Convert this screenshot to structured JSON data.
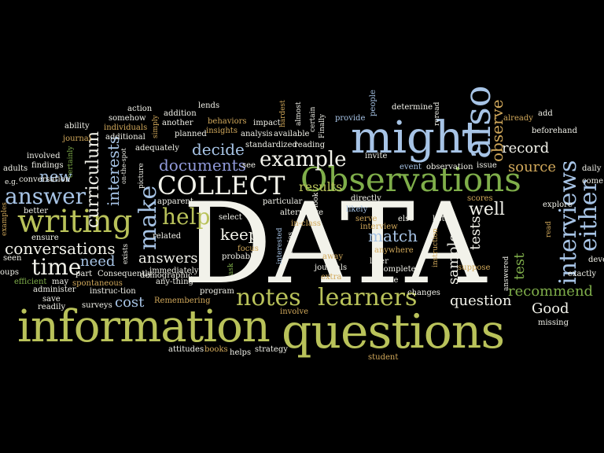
{
  "colors": {
    "background": "#000000",
    "white": "#f2f2ea",
    "olive": "#b9c25a",
    "lightblue": "#a7c4e6",
    "periwinkle": "#8f98d8",
    "green": "#7fae4a",
    "tan": "#d2a95b",
    "gray": "#b8b8b8",
    "cream": "#e8e8cf"
  },
  "words": {
    "data": "DATA",
    "information": "information",
    "questions": "questions",
    "might": "might",
    "observations": "Observations",
    "collect": "COLLECT",
    "writing": "writing",
    "also": "also",
    "interviews": "interviews",
    "either": "either",
    "example": "example",
    "notes": "notes",
    "learners": "learners",
    "time": "time",
    "answer": "answer",
    "new": "new",
    "help": "help",
    "make": "make",
    "documents": "documents",
    "decide": "decide",
    "curriculum": "curriculum",
    "interests": "interests",
    "conversations": "conversations",
    "answers": "answers",
    "keep": "keep",
    "match": "match",
    "well": "well",
    "results": "results",
    "source": "source",
    "record": "record",
    "observe": "observe",
    "recommend": "recommend",
    "question": "question",
    "good": "Good",
    "cost": "cost",
    "need": "need",
    "samples": "samples",
    "tests": "tests",
    "test": "test",
    "action": "action",
    "somehow": "somehow",
    "addition": "addition",
    "lends": "lends",
    "another": "another",
    "ability": "ability",
    "individuals": "individuals",
    "simply": "simply",
    "journal": "journal",
    "additional": "additional",
    "planned": "planned",
    "insights": "insights",
    "behaviors": "behaviors",
    "impact": "impact",
    "analysis": "analysis",
    "available": "available",
    "almost": "almost",
    "certain": "certain",
    "finally": "Finally",
    "hardest": "hardest",
    "provide": "provide",
    "people": "people",
    "determine": "determine",
    "reread": "reread",
    "already": "already",
    "add": "add",
    "beforehand": "beforehand",
    "involved": "involved",
    "adequately": "adequately",
    "standardized": "standardized",
    "reading": "reading",
    "invite": "invite",
    "adults": "adults",
    "findings": "findings",
    "certainly": "certainly",
    "eg": "e.g.",
    "conversation": "conversation",
    "picture": "picture",
    "see": "see",
    "event": "event",
    "observation": "observation",
    "issue": "issue",
    "daily": "daily",
    "come": "come",
    "better": "better",
    "apparent": "apparent",
    "particular": "particular",
    "look": "look",
    "directly": "directly",
    "scores": "scores",
    "examples": "examples",
    "ensure": "ensure",
    "alternative": "alternative",
    "likely": "likely",
    "else": "else",
    "lists": "lists",
    "explore": "explore",
    "select": "select",
    "inclass": "in-class",
    "serve": "serve",
    "interview": "interview",
    "read": "read",
    "onthespot": "on-the-spot",
    "related": "related",
    "immediately": "immediately",
    "series": "series",
    "interested": "interested",
    "anywhere": "anywhere",
    "instruction": "instruction",
    "seen": "seen",
    "exists": "exists",
    "probably": "probably",
    "away": "away",
    "later": "later",
    "develop": "deve",
    "groups": "oups",
    "part": "part",
    "consequently": "Consequently",
    "anything": "any-thing",
    "ask": "ask",
    "journals": "journals",
    "complete": "complete",
    "suppose": "suppose",
    "exactly": "exactly",
    "efficient": "efficient",
    "spontaneous": "spontaneous",
    "demographic": "demographic",
    "extra": "extra",
    "one": "one",
    "answered": "answered",
    "may": "may",
    "administer": "administer",
    "instructtion": "instruc-tion",
    "program": "program",
    "changes": "changes",
    "save": "save",
    "surveys": "surveys",
    "remembering": "Remembering",
    "involve": "involve",
    "readily": "readily",
    "missing": "missing",
    "attitudes": "attitudes",
    "books": "books",
    "helps": "helps",
    "strategy": "strategy",
    "student": "student",
    "focus": "focus"
  }
}
